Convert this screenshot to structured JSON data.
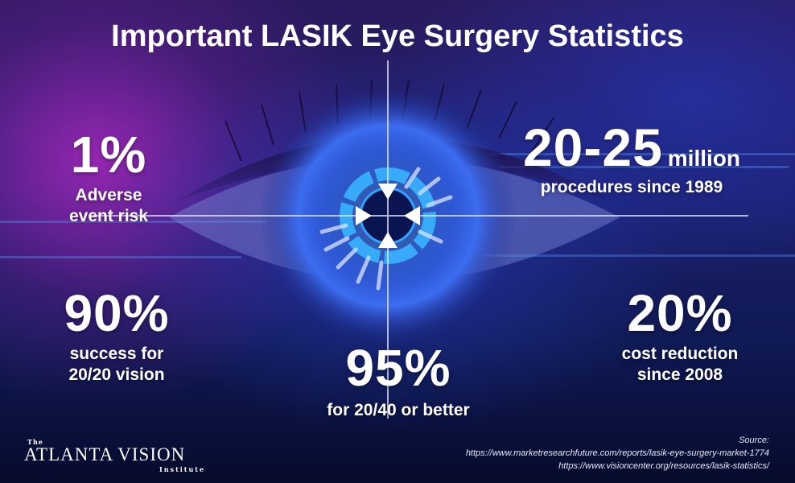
{
  "title": "Important LASIK Eye Surgery Statistics",
  "stats": {
    "adverse": {
      "value": "1%",
      "label_line1": "Adverse",
      "label_line2": "event risk"
    },
    "procedures": {
      "value": "20-25",
      "unit": "million",
      "label": "procedures since 1989"
    },
    "success": {
      "value": "90%",
      "label_line1": "success for",
      "label_line2": "20/20 vision"
    },
    "better": {
      "value": "95%",
      "label": "for 20/40 or better"
    },
    "cost": {
      "value": "20%",
      "label_line1": "cost reduction",
      "label_line2": "since 2008"
    }
  },
  "source": {
    "heading": "Source:",
    "url1": "https://www.marketresearchfuture.com/reports/lasik-eye-surgery-market-1774",
    "url2": "https://www.visioncenter.org/resources/lasik-statistics/"
  },
  "logo": {
    "the": "The",
    "name": "ATLANTA VISION",
    "sub": "Institute"
  },
  "colors": {
    "accent_blue": "#2ea3ff",
    "magenta": "#b02cc4",
    "navy": "#0b1340"
  }
}
